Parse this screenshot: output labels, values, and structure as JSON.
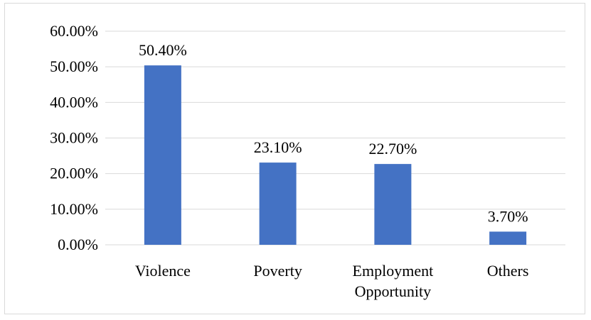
{
  "chart_data": {
    "type": "bar",
    "categories": [
      "Violence",
      "Poverty",
      "Employment Opportunity",
      "Others"
    ],
    "category_lines": [
      [
        "Violence"
      ],
      [
        "Poverty"
      ],
      [
        "Employment",
        "Opportunity"
      ],
      [
        "Others"
      ]
    ],
    "values": [
      50.4,
      23.1,
      22.7,
      3.7
    ],
    "data_labels": [
      "50.40%",
      "23.10%",
      "22.70%",
      "3.70%"
    ],
    "yticks": [
      0,
      10,
      20,
      30,
      40,
      50,
      60
    ],
    "ytick_labels": [
      "0.00%",
      "10.00%",
      "20.00%",
      "30.00%",
      "40.00%",
      "50.00%",
      "60.00%"
    ],
    "ylim": [
      0,
      60
    ],
    "grid": true,
    "legend": "none",
    "title": "",
    "xlabel": "",
    "ylabel": "",
    "colors": {
      "bar": "#4472c4",
      "grid": "#d9d9d9",
      "frame": "#d9d9d9"
    }
  }
}
